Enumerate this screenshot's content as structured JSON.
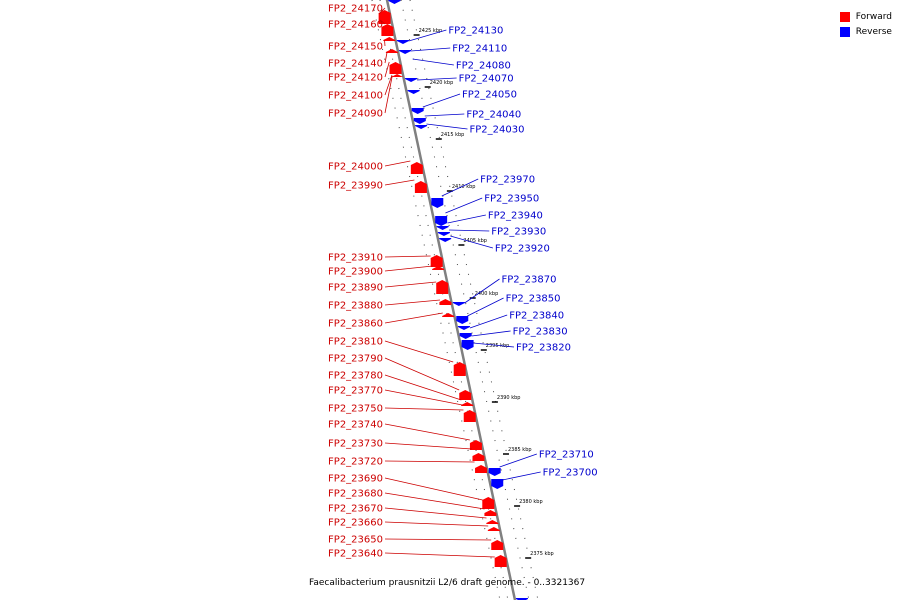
{
  "colors": {
    "forward": "#ff0000",
    "reverse": "#0000ff",
    "backbone": "#808080"
  },
  "legend": {
    "forward_label": "Forward",
    "reverse_label": "Reverse"
  },
  "caption": "Faecalibacterium prausnitzii L2/6 draft genome. - 0..3321367",
  "forward_genes": [
    "FP2_24170",
    "FP2_24160",
    "FP2_24150",
    "FP2_24140",
    "FP2_24120",
    "FP2_24100",
    "FP2_24090",
    "FP2_24000",
    "FP2_23990",
    "FP2_23910",
    "FP2_23900",
    "FP2_23890",
    "FP2_23880",
    "FP2_23860",
    "FP2_23810",
    "FP2_23790",
    "FP2_23780",
    "FP2_23770",
    "FP2_23750",
    "FP2_23740",
    "FP2_23730",
    "FP2_23720",
    "FP2_23690",
    "FP2_23680",
    "FP2_23670",
    "FP2_23660",
    "FP2_23650",
    "FP2_23640"
  ],
  "reverse_genes": [
    "FP2_24130",
    "FP2_24110",
    "FP2_24080",
    "FP2_24070",
    "FP2_24050",
    "FP2_24040",
    "FP2_24030",
    "FP2_23970",
    "FP2_23950",
    "FP2_23940",
    "FP2_23930",
    "FP2_23920",
    "FP2_23870",
    "FP2_23850",
    "FP2_23840",
    "FP2_23830",
    "FP2_23820",
    "FP2_23710",
    "FP2_23700"
  ],
  "scale_ticks": [
    "2425 kbp",
    "2420 kbp",
    "2415 kbp",
    "2410 kbp",
    "2405 kbp",
    "2400 kbp",
    "2395 kbp",
    "2390 kbp",
    "2385 kbp",
    "2380 kbp",
    "2375 kbp"
  ]
}
